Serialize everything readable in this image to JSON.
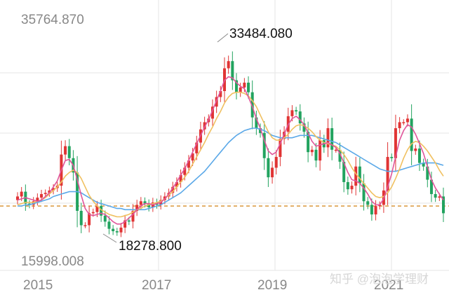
{
  "chart_data": {
    "type": "candlestick",
    "y_max_label": "35764.870",
    "y_min_label": "15998.008",
    "ylim": [
      15998.008,
      35764.87
    ],
    "reference_level": 20200,
    "x_ticks": [
      "2015",
      "2017",
      "2019",
      "2021"
    ],
    "annotations": {
      "high": {
        "label": "33484.080",
        "value": 33484.08
      },
      "low": {
        "label": "18278.800",
        "value": 18278.8
      }
    },
    "watermark": "知乎 @泡泡学理财",
    "colors": {
      "up": "#e03434",
      "down": "#22a35f",
      "ma_short": "#e0559a",
      "ma_mid": "#f0c060",
      "ma_long": "#5aa8e8",
      "reference": "#d9963a",
      "grid": "#e6e6e6",
      "label": "#888888"
    },
    "series": {
      "closes": [
        21000,
        21400,
        20400,
        20300,
        20600,
        20900,
        21200,
        21300,
        21500,
        21700,
        21900,
        24500,
        25200,
        24200,
        23000,
        19800,
        18600,
        18600,
        19600,
        19700,
        20200,
        19400,
        18900,
        18300,
        18100,
        18000,
        18400,
        19000,
        18900,
        19800,
        20300,
        20600,
        20400,
        20100,
        20500,
        20300,
        20700,
        21000,
        21300,
        21800,
        22200,
        22800,
        23400,
        24000,
        24600,
        25500,
        26600,
        27200,
        27500,
        28500,
        29300,
        29800,
        31700,
        32300,
        30700,
        29700,
        30100,
        30500,
        29700,
        27600,
        26700,
        26300,
        24200,
        22600,
        23400,
        24300,
        25800,
        26400,
        27700,
        28200,
        28100,
        27100,
        26400,
        24700,
        24900,
        24000,
        25700,
        25100,
        26700,
        24900,
        24900,
        23900,
        22200,
        21600,
        21900,
        23500,
        22100,
        20600,
        20300,
        19500,
        20200,
        20300,
        21500,
        24300,
        24200,
        26700,
        27200,
        27200,
        27500,
        24800,
        25000,
        23800,
        23500,
        22400,
        21200,
        20900,
        21000,
        19600
      ],
      "ma_short": [
        20700,
        20800,
        20900,
        20800,
        20700,
        20600,
        20700,
        21000,
        21300,
        21800,
        22300,
        23200,
        24000,
        24100,
        23600,
        22400,
        21100,
        20000,
        19500,
        19400,
        19500,
        19600,
        19500,
        19200,
        18900,
        18700,
        18700,
        18900,
        19200,
        19500,
        19900,
        20200,
        20400,
        20400,
        20300,
        20400,
        20500,
        20800,
        21200,
        21700,
        22200,
        22800,
        23300,
        24000,
        24700,
        25400,
        26100,
        26800,
        27400,
        28200,
        29000,
        29800,
        30700,
        31000,
        30900,
        30500,
        30200,
        30000,
        29300,
        28500,
        27500,
        26700,
        25700,
        24800,
        24500,
        24700,
        25400,
        26200,
        27000,
        27500,
        27700,
        27400,
        27000,
        26300,
        25600,
        25200,
        25300,
        25400,
        25500,
        25300,
        25100,
        24600,
        23800,
        23000,
        22400,
        22300,
        22100,
        21700,
        21200,
        20600,
        20300,
        20300,
        20800,
        21800,
        22900,
        24300,
        25700,
        26500,
        27000,
        26800,
        26200,
        25400,
        24600,
        23500,
        22400,
        21700,
        21200,
        20700
      ],
      "ma_mid": [
        20300,
        20400,
        20500,
        20500,
        20500,
        20600,
        20700,
        20900,
        21200,
        21500,
        21800,
        22200,
        22700,
        23000,
        23200,
        23000,
        22500,
        21800,
        21100,
        20600,
        20200,
        19900,
        19700,
        19500,
        19400,
        19300,
        19300,
        19400,
        19500,
        19700,
        19900,
        20000,
        20200,
        20300,
        20400,
        20500,
        20600,
        20800,
        21100,
        21400,
        21800,
        22200,
        22600,
        23100,
        23700,
        24300,
        24900,
        25500,
        26200,
        26800,
        27500,
        28100,
        28800,
        29300,
        29600,
        29700,
        29700,
        29600,
        29400,
        29000,
        28500,
        27800,
        27100,
        26400,
        25900,
        25700,
        25700,
        25900,
        26200,
        26600,
        26900,
        27000,
        26900,
        26700,
        26400,
        26000,
        25700,
        25500,
        25400,
        25300,
        25200,
        24900,
        24500,
        24000,
        23400,
        22900,
        22500,
        22100,
        21700,
        21300,
        21000,
        20900,
        21000,
        21300,
        21800,
        22500,
        23300,
        24200,
        24900,
        25400,
        25600,
        25500,
        25200,
        24800,
        24300,
        23800,
        23200,
        22700
      ],
      "ma_long": [
        20200,
        20200,
        20300,
        20300,
        20400,
        20500,
        20600,
        20700,
        20800,
        21000,
        21100,
        21200,
        21300,
        21400,
        21400,
        21400,
        21300,
        21100,
        20900,
        20700,
        20500,
        20400,
        20300,
        20200,
        20100,
        20000,
        20000,
        19900,
        19900,
        19900,
        19900,
        19900,
        19900,
        20000,
        20100,
        20200,
        20300,
        20500,
        20700,
        20900,
        21100,
        21300,
        21600,
        21900,
        22200,
        22500,
        22800,
        23100,
        23500,
        23900,
        24300,
        24700,
        25100,
        25500,
        25800,
        26100,
        26300,
        26500,
        26600,
        26700,
        26700,
        26600,
        26500,
        26300,
        26100,
        26000,
        25900,
        25900,
        25900,
        25900,
        26000,
        26100,
        26100,
        26100,
        26100,
        26000,
        25900,
        25800,
        25700,
        25600,
        25500,
        25300,
        25100,
        24900,
        24700,
        24500,
        24300,
        24100,
        23900,
        23700,
        23500,
        23300,
        23200,
        23100,
        23100,
        23100,
        23200,
        23300,
        23400,
        23500,
        23600,
        23700,
        23800,
        23800,
        23800,
        23800,
        23700,
        23600
      ]
    }
  }
}
